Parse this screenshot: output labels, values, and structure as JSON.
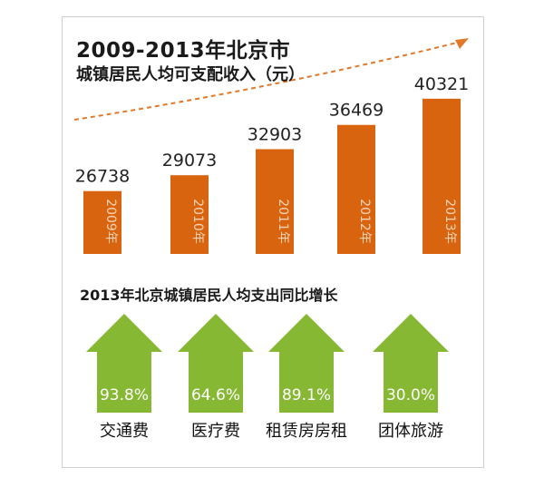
{
  "title_line1": "2009-2013年北京市",
  "title_line2": "城镇居民人均可支配收入（元）",
  "section2_title": "2013年北京城镇居民人均支出同比增长",
  "colors": {
    "bar": "#d9640f",
    "arrow": "#86b833",
    "trend_line": "#e07a2a"
  },
  "chart_data": [
    {
      "type": "bar",
      "title": "2009-2013年北京市 城镇居民人均可支配收入（元）",
      "categories": [
        "2009年",
        "2010年",
        "2011年",
        "2012年",
        "2013年"
      ],
      "values": [
        26738,
        29073,
        32903,
        36469,
        40321
      ],
      "value_labels": [
        "26738",
        "29073",
        "32903",
        "36469",
        "40321"
      ],
      "ylim": [
        17500,
        41500
      ],
      "grid": false,
      "trend_arrow": true
    },
    {
      "type": "bar",
      "title": "2013年北京城镇居民人均支出同比增长",
      "categories": [
        "交通费",
        "医疗费",
        "租赁房房租",
        "团体旅游"
      ],
      "values": [
        93.8,
        64.6,
        89.1,
        30.0
      ],
      "value_labels": [
        "93.8%",
        "64.6%",
        "89.1%",
        "30.0%"
      ],
      "unit": "%"
    }
  ]
}
